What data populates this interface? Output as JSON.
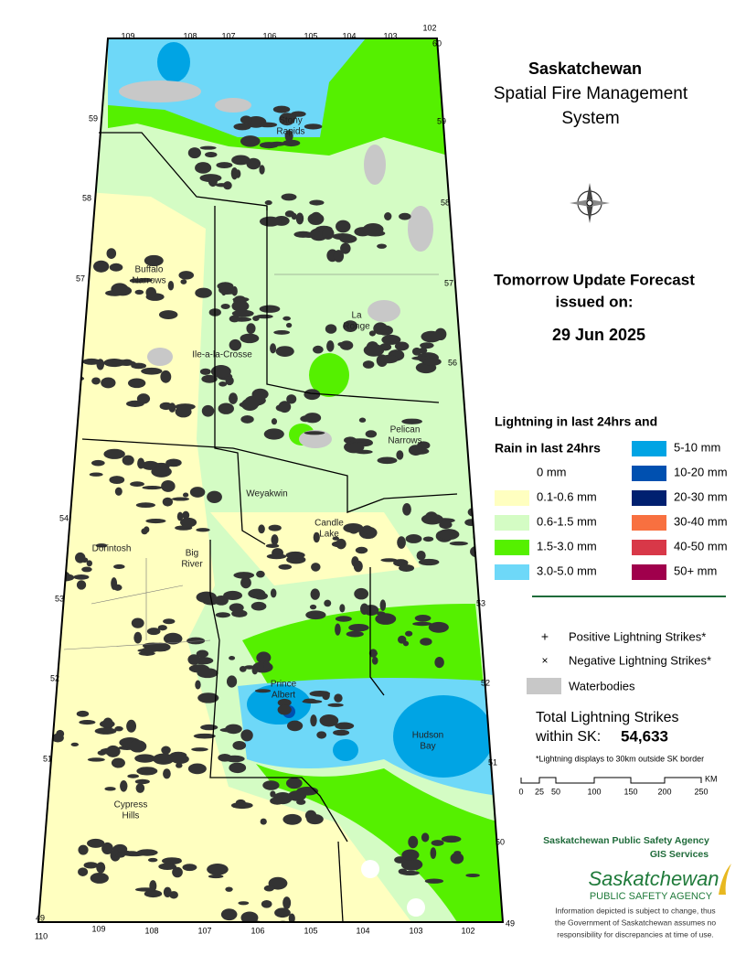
{
  "header": {
    "title": "Saskatchewan",
    "subtitle": [
      "Spatial Fire Management",
      "System"
    ]
  },
  "forecast": {
    "heading": "Tomorrow Update Forecast",
    "issued": "issued on:",
    "date": "29 Jun 2025"
  },
  "legend": {
    "heading": [
      "Lightning in last 24hrs and",
      "Rain in last 24hrs"
    ],
    "items": [
      {
        "label": "0 mm",
        "color": "#ffffff"
      },
      {
        "label": "0.1-0.6 mm",
        "color": "#ffffc0"
      },
      {
        "label": "0.6-1.5 mm",
        "color": "#d4fcc4"
      },
      {
        "label": "1.5-3.0 mm",
        "color": "#55f000"
      },
      {
        "label": "3.0-5.0 mm",
        "color": "#6ed8f8"
      },
      {
        "label": "5-10 mm",
        "color": "#00a4e4"
      },
      {
        "label": "10-20 mm",
        "color": "#0050b0"
      },
      {
        "label": "20-30 mm",
        "color": "#002070"
      },
      {
        "label": "30-40 mm",
        "color": "#f87040"
      },
      {
        "label": "40-50 mm",
        "color": "#d83848"
      },
      {
        "label": "50+ mm",
        "color": "#a0004c"
      }
    ],
    "symbols": [
      "Positive Lightning Strikes*",
      "Negative Lightning Strikes*",
      "Waterbodies"
    ]
  },
  "total": {
    "label": [
      "Total Lightning Strikes",
      "within SK:"
    ],
    "value": "54,633",
    "note": "*Lightning displays to 30km outside SK border"
  },
  "scale": {
    "ticks": [
      "0",
      "25",
      "50",
      "100",
      "150",
      "200",
      "250"
    ],
    "unit": "KM"
  },
  "agency": {
    "name": "Saskatchewan Public Safety Agency",
    "unit": "GIS  Services",
    "logo": [
      "Saskatchewan",
      "PUBLIC SAFETY AGENCY"
    ],
    "disclaimer": [
      "Information depicted is subject to change, thus",
      "the Government of Saskatchewan assumes no",
      "responsibility for discrepancies at time of use."
    ]
  },
  "graticule": {
    "top": [
      "109",
      "108",
      "107",
      "106",
      "105",
      "104",
      "103",
      "102",
      "60"
    ],
    "bottom": [
      "110",
      "109",
      "108",
      "107",
      "106",
      "105",
      "104",
      "103",
      "102",
      "49",
      "49"
    ],
    "left": [
      "59",
      "58",
      "57",
      "54",
      "53",
      "52",
      "51"
    ],
    "right": [
      "59",
      "58",
      "57",
      "56",
      "53",
      "52",
      "51",
      "50"
    ]
  },
  "places": [
    {
      "lines": [
        "Stony",
        "Rapids"
      ]
    },
    {
      "lines": [
        "Buffalo",
        "Narrows"
      ]
    },
    {
      "lines": [
        "La",
        "Ronge"
      ]
    },
    {
      "lines": [
        "Ile-a-la-Crosse"
      ]
    },
    {
      "lines": [
        "Pelican",
        "Narrows"
      ]
    },
    {
      "lines": [
        "Weyakwin"
      ]
    },
    {
      "lines": [
        "Candle",
        "Lake"
      ]
    },
    {
      "lines": [
        "Dorintosh"
      ]
    },
    {
      "lines": [
        "Big",
        "River"
      ]
    },
    {
      "lines": [
        "Prince",
        "Albert"
      ]
    },
    {
      "lines": [
        "Hudson",
        "Bay"
      ]
    },
    {
      "lines": [
        "Cypress",
        "Hills"
      ]
    }
  ]
}
